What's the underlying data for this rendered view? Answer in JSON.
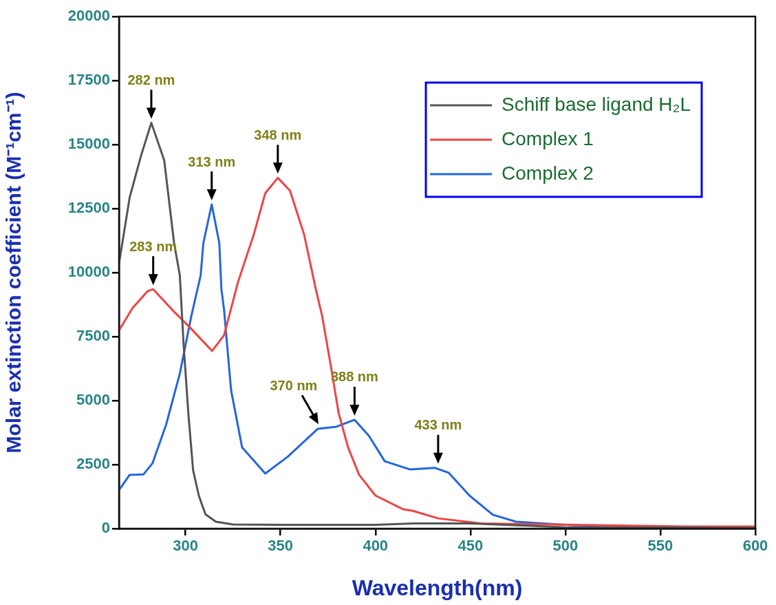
{
  "chart_data": {
    "type": "line",
    "xlabel": "Wavelength(nm)",
    "ylabel": "Molar extinction coefficient (M⁻¹cm⁻¹)",
    "xlim": [
      265,
      600
    ],
    "xticks": [
      300,
      350,
      400,
      450,
      500,
      550,
      600
    ],
    "ylim": [
      0,
      20000
    ],
    "yticks": [
      0,
      2500,
      5000,
      7500,
      10000,
      12500,
      15000,
      17500,
      20000
    ],
    "grid": false,
    "legend": "top right",
    "marker": "none",
    "line_style": "solid",
    "series": [
      {
        "name": "Schiff base ligand H₂L",
        "color": "#555555",
        "x": [
          265,
          270.6,
          276.5,
          282,
          288.8,
          294,
          297,
          299,
          301.5,
          304,
          307,
          310.5,
          316,
          325,
          350,
          400,
          420,
          450,
          475,
          500,
          550,
          600
        ],
        "values": [
          10350,
          12930,
          14540,
          15850,
          14380,
          11150,
          9900,
          7200,
          4500,
          2280,
          1290,
          560,
          270,
          160,
          150,
          150,
          200,
          200,
          130,
          50,
          40,
          30
        ]
      },
      {
        "name": "Complex 1",
        "color": "#ee4444",
        "x": [
          265,
          272,
          280,
          283,
          294,
          302,
          314,
          320.3,
          327.6,
          336,
          342,
          348.6,
          355,
          362.4,
          368.6,
          372,
          376.6,
          380.6,
          385.6,
          391.4,
          400,
          414.7,
          419.4,
          433,
          455.7,
          492,
          564.5,
          600
        ],
        "values": [
          7740,
          8600,
          9270,
          9350,
          8470,
          7880,
          6940,
          7550,
          9620,
          11500,
          13100,
          13700,
          13200,
          11500,
          9350,
          8280,
          6310,
          4520,
          3170,
          2100,
          1290,
          750,
          700,
          400,
          200,
          160,
          80,
          80
        ]
      },
      {
        "name": "Complex 2",
        "color": "#2266dd",
        "x": [
          265,
          270.6,
          277.9,
          282.6,
          289.8,
          297,
          303,
          308,
          309.4,
          313.8,
          317.8,
          318.9,
          320.3,
          324,
          329.8,
          342,
          354,
          369.7,
          379.5,
          389,
          396.5,
          404.9,
          418.3,
          431.4,
          438.6,
          449.5,
          461.8,
          474,
          504,
          564.5,
          600
        ],
        "values": [
          1500,
          2100,
          2120,
          2550,
          4060,
          6050,
          8280,
          9900,
          11150,
          12660,
          11150,
          9350,
          8550,
          5400,
          3170,
          2150,
          2820,
          3900,
          3980,
          4250,
          3630,
          2630,
          2310,
          2370,
          2180,
          1290,
          540,
          270,
          130,
          60,
          40
        ]
      }
    ],
    "annotations": [
      {
        "text": "282 nm",
        "x": 282,
        "y": 15850
      },
      {
        "text": "283 nm",
        "x": 283,
        "y": 9350
      },
      {
        "text": "313 nm",
        "x": 313.8,
        "y": 12660
      },
      {
        "text": "348 nm",
        "x": 348.6,
        "y": 13700
      },
      {
        "text": "370 nm",
        "x": 370,
        "y": 3920
      },
      {
        "text": "388 nm",
        "x": 389,
        "y": 4250
      },
      {
        "text": "433 nm",
        "x": 433,
        "y": 2370
      }
    ]
  }
}
